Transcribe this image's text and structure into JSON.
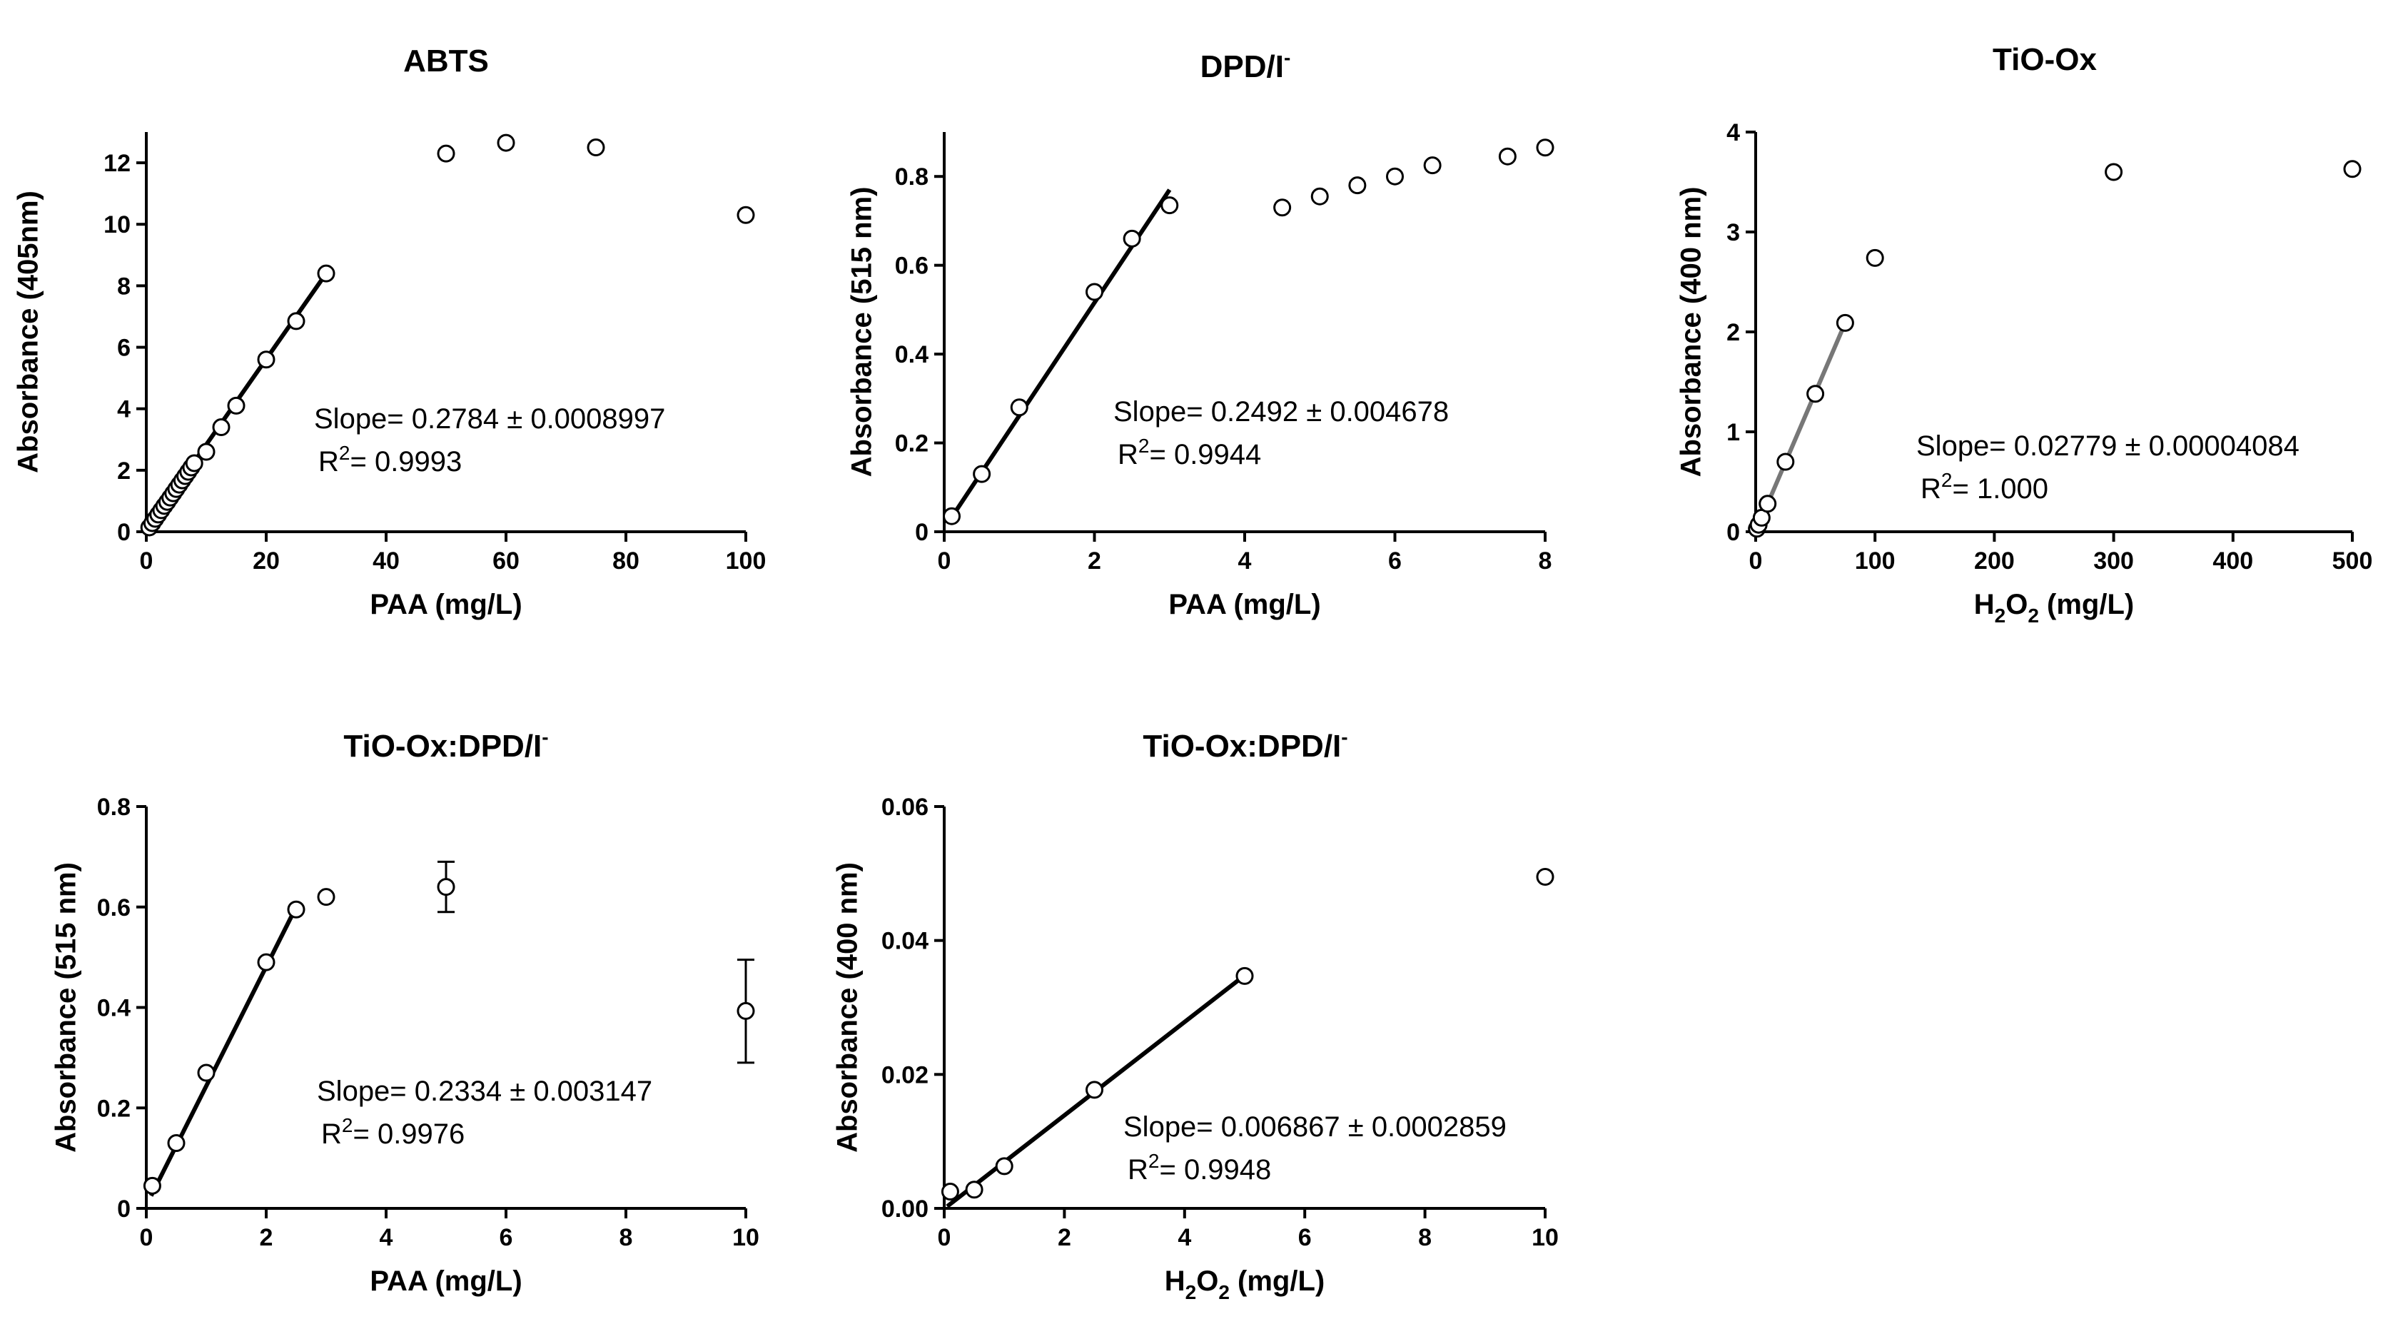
{
  "chart_data": [
    {
      "type": "scatter",
      "title": "ABTS",
      "xlabel": "PAA (mg/L)",
      "ylabel": "Absorbance (405nm)",
      "xlim": [
        0,
        100
      ],
      "ylim": [
        0,
        13
      ],
      "xticks": [
        0,
        20,
        40,
        60,
        80,
        100
      ],
      "yticks": [
        0,
        2,
        4,
        6,
        8,
        10,
        12
      ],
      "points": [
        [
          0.5,
          0.14
        ],
        [
          1,
          0.28
        ],
        [
          1.5,
          0.42
        ],
        [
          2,
          0.56
        ],
        [
          2.5,
          0.7
        ],
        [
          3,
          0.84
        ],
        [
          3.5,
          0.97
        ],
        [
          4,
          1.11
        ],
        [
          4.5,
          1.25
        ],
        [
          5,
          1.39
        ],
        [
          5.5,
          1.53
        ],
        [
          6,
          1.67
        ],
        [
          6.5,
          1.81
        ],
        [
          7,
          1.95
        ],
        [
          7.5,
          2.09
        ],
        [
          8,
          2.23
        ],
        [
          10,
          2.6
        ],
        [
          12.5,
          3.4
        ],
        [
          15,
          4.1
        ],
        [
          20,
          5.6
        ],
        [
          25,
          6.85
        ],
        [
          30,
          8.4
        ],
        [
          50,
          12.3
        ],
        [
          60,
          12.65
        ],
        [
          75,
          12.5
        ],
        [
          100,
          10.3
        ]
      ],
      "fit": {
        "x": [
          0,
          30
        ],
        "y": [
          0.05,
          8.4
        ],
        "color": "#000000"
      },
      "annotation": {
        "slope_label": "Slope=",
        "slope_value": "0.2784 ± 0.0008997",
        "r2_label": "R",
        "r2_sup": "2",
        "r2_value": "= 0.9993"
      }
    },
    {
      "type": "scatter",
      "title": "DPD/I",
      "title_sup": "-",
      "xlabel": "PAA (mg/L)",
      "ylabel": "Absorbance (515 nm)",
      "xlim": [
        0,
        8
      ],
      "ylim": [
        0,
        0.9
      ],
      "xticks": [
        0,
        2,
        4,
        6,
        8
      ],
      "yticks": [
        0.0,
        0.2,
        0.4,
        0.6,
        0.8
      ],
      "points": [
        [
          0.1,
          0.035
        ],
        [
          0.5,
          0.13
        ],
        [
          1,
          0.28
        ],
        [
          2,
          0.54
        ],
        [
          2.5,
          0.66
        ],
        [
          3,
          0.735
        ],
        [
          4.5,
          0.73
        ],
        [
          5,
          0.755
        ],
        [
          5.5,
          0.78
        ],
        [
          6,
          0.8
        ],
        [
          6.5,
          0.825
        ],
        [
          7.5,
          0.845
        ],
        [
          8,
          0.865
        ]
      ],
      "fit": {
        "x": [
          0.05,
          3
        ],
        "y": [
          0.02,
          0.77
        ],
        "color": "#000000"
      },
      "annotation": {
        "slope_label": "Slope=",
        "slope_value": "0.2492 ± 0.004678",
        "r2_label": "R",
        "r2_sup": "2",
        "r2_value": "= 0.9944"
      }
    },
    {
      "type": "scatter",
      "title": "TiO-Ox",
      "xlabel": "H2O2 (mg/L)",
      "xlabel_parts": [
        "H",
        "2",
        "O",
        "2",
        " (mg/L)"
      ],
      "ylabel": "Absorbance (400 nm)",
      "xlim": [
        0,
        500
      ],
      "ylim": [
        0,
        4
      ],
      "xticks": [
        0,
        100,
        200,
        300,
        400,
        500
      ],
      "yticks": [
        0,
        1,
        2,
        3,
        4
      ],
      "points": [
        [
          1,
          0.03
        ],
        [
          2.5,
          0.07
        ],
        [
          5,
          0.14
        ],
        [
          10,
          0.28
        ],
        [
          25,
          0.7
        ],
        [
          50,
          1.38
        ],
        [
          75,
          2.09
        ],
        [
          100,
          2.74
        ],
        [
          300,
          3.6
        ],
        [
          500,
          3.63
        ]
      ],
      "fit": {
        "x": [
          0,
          75
        ],
        "y": [
          0.0,
          2.09
        ],
        "color": "#777777"
      },
      "annotation": {
        "slope_label": "Slope=",
        "slope_value": "0.02779 ± 0.00004084",
        "r2_label": "R",
        "r2_sup": "2",
        "r2_value": "= 1.000"
      }
    },
    {
      "type": "scatter",
      "title": "TiO-Ox:DPD/I",
      "title_sup": "-",
      "xlabel": "PAA (mg/L)",
      "ylabel": "Absorbance (515 nm)",
      "xlim": [
        0,
        10
      ],
      "ylim": [
        0,
        0.8
      ],
      "xticks": [
        0,
        2,
        4,
        6,
        8,
        10
      ],
      "yticks": [
        0.0,
        0.2,
        0.4,
        0.6,
        0.8
      ],
      "points": [
        [
          0.1,
          0.045
        ],
        [
          0.5,
          0.13
        ],
        [
          1,
          0.27
        ],
        [
          2,
          0.49
        ],
        [
          2.5,
          0.595
        ],
        [
          3,
          0.62
        ],
        [
          5,
          0.64
        ],
        [
          10,
          0.393
        ]
      ],
      "errors": [
        {
          "x": 5,
          "y": 0.64,
          "low": 0.59,
          "high": 0.69
        },
        {
          "x": 10,
          "y": 0.393,
          "low": 0.29,
          "high": 0.495
        }
      ],
      "fit": {
        "x": [
          0.08,
          2.5
        ],
        "y": [
          0.025,
          0.6
        ],
        "color": "#000000"
      },
      "annotation": {
        "slope_label": "Slope=",
        "slope_value": "0.2334 ± 0.003147",
        "r2_label": "R",
        "r2_sup": "2",
        "r2_value": "= 0.9976"
      }
    },
    {
      "type": "scatter",
      "title": "TiO-Ox:DPD/I",
      "title_sup": "-",
      "xlabel": "H2O2 (mg/L)",
      "xlabel_parts": [
        "H",
        "2",
        "O",
        "2",
        " (mg/L)"
      ],
      "ylabel": "Absorbance (400 nm)",
      "xlim": [
        0,
        10
      ],
      "ylim": [
        0,
        0.06
      ],
      "xticks": [
        0,
        2,
        4,
        6,
        8,
        10
      ],
      "yticks": [
        "0.00",
        "0.02",
        "0.04",
        "0.06"
      ],
      "points": [
        [
          0.1,
          0.0025
        ],
        [
          0.5,
          0.0028
        ],
        [
          1,
          0.0063
        ],
        [
          2.5,
          0.0177
        ],
        [
          5,
          0.0347
        ],
        [
          10,
          0.0495
        ]
      ],
      "fit": {
        "x": [
          0.05,
          5
        ],
        "y": [
          0.0003,
          0.0348
        ],
        "color": "#000000"
      },
      "annotation": {
        "slope_label": "Slope=",
        "slope_value": "0.006867 ± 0.0002859",
        "r2_label": "R",
        "r2_sup": "2",
        "r2_value": "= 0.9948"
      }
    }
  ]
}
